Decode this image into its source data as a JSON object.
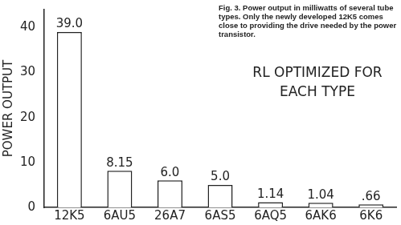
{
  "chart_data": {
    "type": "bar",
    "caption": "Fig. 3. Power output in milliwatts of several tube types. Only the newly developed 12K5 comes close to providing the drive needed by the power transistor.",
    "annotation": "RL OPTIMIZED FOR EACH TYPE",
    "y_label": "POWER OUTPUT",
    "categories": [
      "12K5",
      "6AU5",
      "26A7",
      "6AS5",
      "6AQ5",
      "6AK6",
      "6K6"
    ],
    "values": [
      39.0,
      8.15,
      6.0,
      5.0,
      1.14,
      1.04,
      0.66
    ],
    "value_labels": [
      "39.0",
      "8.15",
      "6.0",
      "5.0",
      "1.14",
      "1.04",
      ".66"
    ],
    "data_labels": true,
    "color": "#ffffff",
    "ylim": [
      0,
      44
    ],
    "yticks": [
      0,
      10,
      20,
      30,
      40
    ],
    "grid": false
  }
}
